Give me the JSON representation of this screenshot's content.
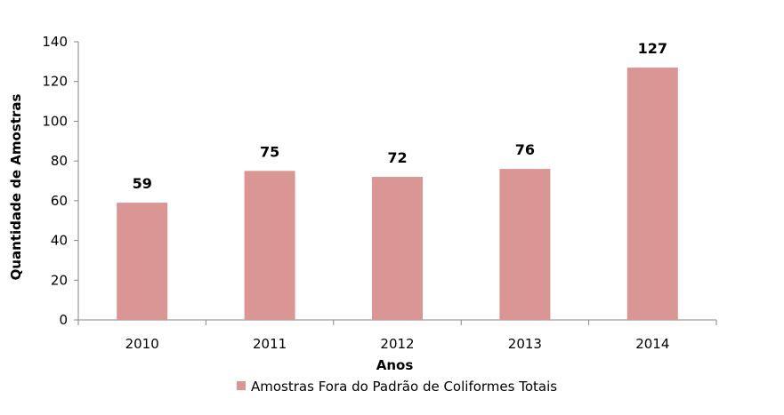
{
  "chart_data": {
    "type": "bar",
    "categories": [
      "2010",
      "2011",
      "2012",
      "2013",
      "2014"
    ],
    "series": [
      {
        "name": "Amostras Fora do Padrão de Coliformes Totais",
        "values": [
          59,
          75,
          72,
          76,
          127
        ],
        "color": "#d99694"
      }
    ],
    "data_labels": [
      "59",
      "75",
      "72",
      "76",
      "127"
    ],
    "title": "",
    "xlabel": "Anos",
    "ylabel": "Quantidade de Amostras",
    "ylim": [
      0,
      140
    ],
    "yticks": [
      0,
      20,
      40,
      60,
      80,
      100,
      120,
      140
    ],
    "grid": false,
    "legend_position": "bottom",
    "axis_color": "#868686"
  }
}
